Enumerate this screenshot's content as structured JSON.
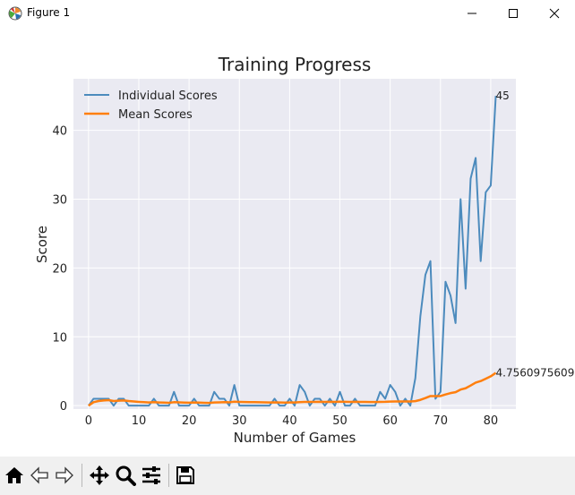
{
  "window": {
    "title": "Figure 1"
  },
  "toolbar": {
    "buttons": [
      {
        "name": "home-icon"
      },
      {
        "name": "back-arrow-icon"
      },
      {
        "name": "forward-arrow-icon"
      },
      {
        "name": "pan-icon"
      },
      {
        "name": "zoom-icon"
      },
      {
        "name": "configure-subplots-icon"
      },
      {
        "name": "save-icon"
      }
    ]
  },
  "chart_data": {
    "type": "line",
    "title": "Training Progress",
    "xlabel": "Number of Games",
    "ylabel": "Score",
    "xlim": [
      -3,
      85
    ],
    "ylim": [
      -0.5,
      47.5
    ],
    "x_ticks": [
      0,
      10,
      20,
      30,
      40,
      50,
      60,
      70,
      80
    ],
    "y_ticks": [
      0,
      10,
      20,
      30,
      40
    ],
    "grid": true,
    "legend_position": "top-left",
    "series": [
      {
        "name": "Individual Scores",
        "color": "#4c8bbd",
        "values": [
          0,
          1,
          1,
          1,
          1,
          0,
          1,
          1,
          0,
          0,
          0,
          0,
          0,
          1,
          0,
          0,
          0,
          2,
          0,
          0,
          0,
          1,
          0,
          0,
          0,
          2,
          1,
          1,
          0,
          3,
          0,
          0,
          0,
          0,
          0,
          0,
          0,
          1,
          0,
          0,
          1,
          0,
          3,
          2,
          0,
          1,
          1,
          0,
          1,
          0,
          2,
          0,
          0,
          1,
          0,
          0,
          0,
          0,
          2,
          1,
          3,
          2,
          0,
          1,
          0,
          4,
          13,
          19,
          21,
          1,
          2,
          18,
          16,
          12,
          30,
          17,
          33,
          36,
          21,
          31,
          32,
          45
        ]
      },
      {
        "name": "Mean Scores",
        "color": "#ff7f0e",
        "values": [
          0,
          0.5,
          0.667,
          0.75,
          0.8,
          0.667,
          0.714,
          0.75,
          0.667,
          0.6,
          0.545,
          0.5,
          0.462,
          0.5,
          0.467,
          0.438,
          0.412,
          0.5,
          0.474,
          0.45,
          0.429,
          0.455,
          0.435,
          0.417,
          0.4,
          0.462,
          0.481,
          0.5,
          0.483,
          0.567,
          0.548,
          0.531,
          0.515,
          0.5,
          0.486,
          0.472,
          0.459,
          0.474,
          0.462,
          0.45,
          0.463,
          0.452,
          0.512,
          0.545,
          0.533,
          0.543,
          0.553,
          0.542,
          0.551,
          0.54,
          0.569,
          0.558,
          0.547,
          0.556,
          0.545,
          0.536,
          0.526,
          0.517,
          0.542,
          0.55,
          0.59,
          0.613,
          0.603,
          0.609,
          0.6,
          0.652,
          0.836,
          1.103,
          1.391,
          1.386,
          1.394,
          1.625,
          1.822,
          1.959,
          2.333,
          2.526,
          2.922,
          3.346,
          3.57,
          3.913,
          4.259,
          4.756
        ]
      }
    ],
    "annotations": [
      {
        "x": 81,
        "y": 45,
        "text": "45"
      },
      {
        "x": 81,
        "y": 4.7560975609,
        "text": "4.7560975609"
      }
    ]
  }
}
